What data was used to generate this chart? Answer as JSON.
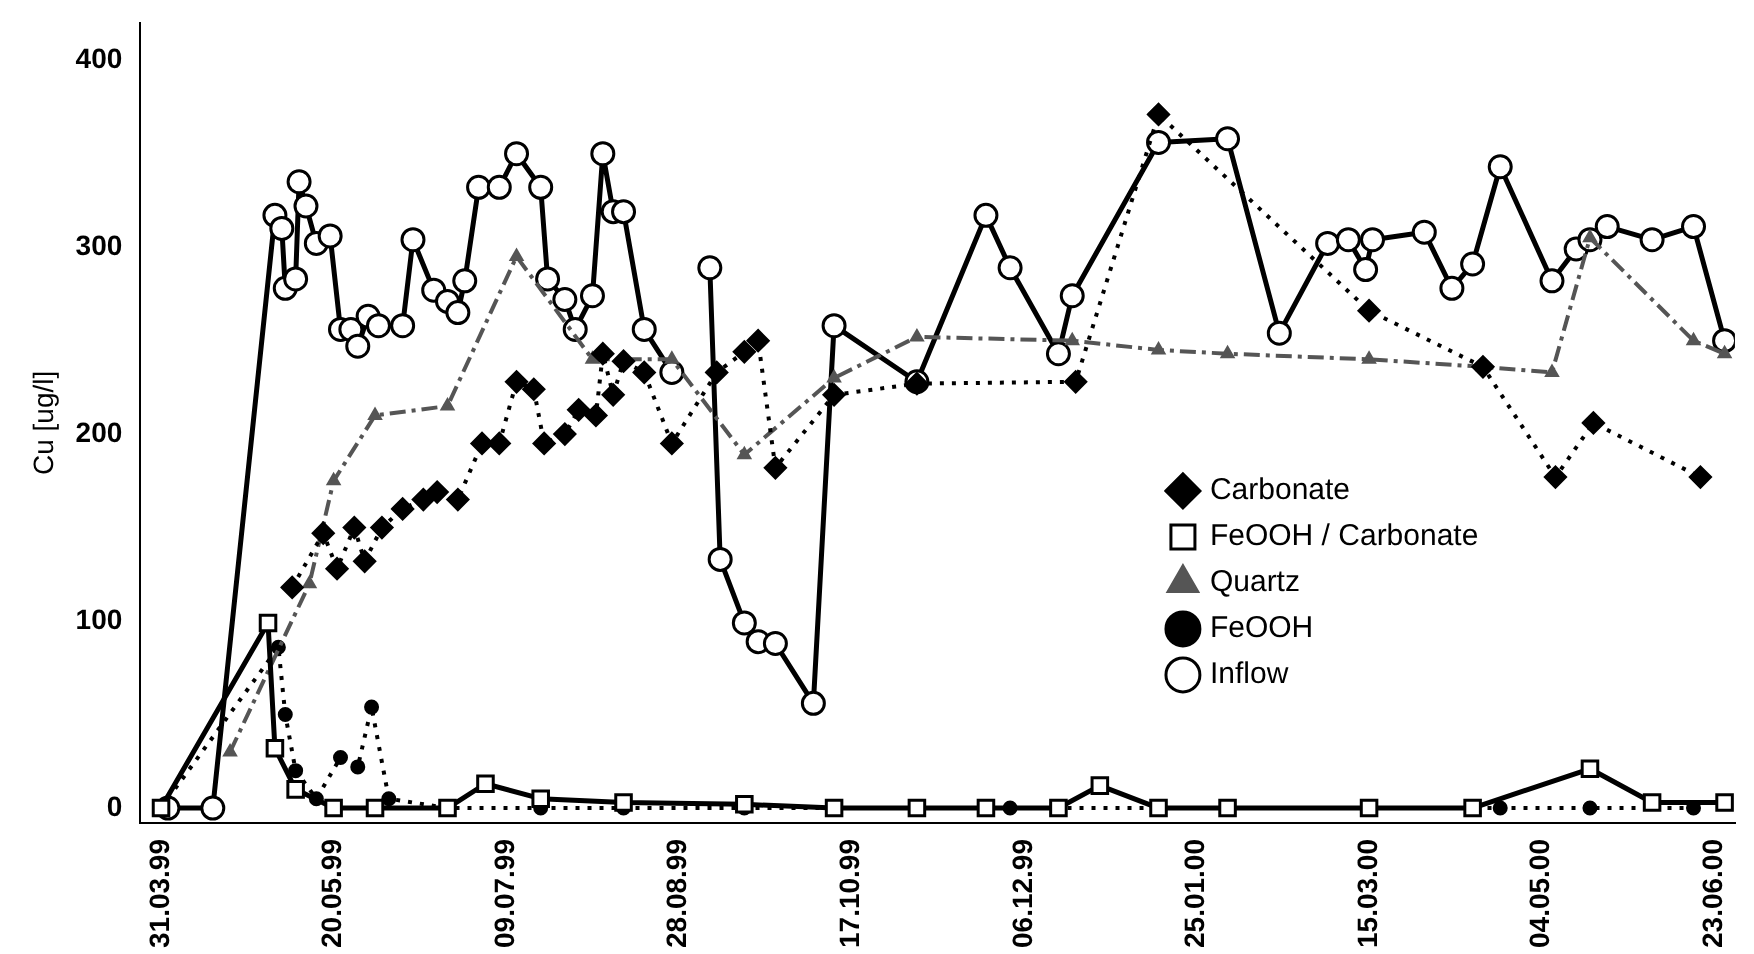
{
  "chart_data": {
    "type": "line",
    "ylabel": "Cu [ug/l]",
    "xlim": [
      "1999-03-25",
      "2000-06-29"
    ],
    "ylim": [
      -8,
      420
    ],
    "yticks": [
      0,
      100,
      200,
      300,
      400
    ],
    "xticks": [
      {
        "value": "1999-03-31",
        "label": "31.03.99"
      },
      {
        "value": "1999-05-20",
        "label": "20.05.99"
      },
      {
        "value": "1999-07-09",
        "label": "09.07.99"
      },
      {
        "value": "1999-08-28",
        "label": "28.08.99"
      },
      {
        "value": "1999-10-17",
        "label": "17.10.99"
      },
      {
        "value": "1999-12-06",
        "label": "06.12.99"
      },
      {
        "value": "2000-01-25",
        "label": "25.01.00"
      },
      {
        "value": "2000-03-15",
        "label": "15.03.00"
      },
      {
        "value": "2000-05-04",
        "label": "04.05.00"
      },
      {
        "value": "2000-06-23",
        "label": "23.06.00"
      }
    ],
    "grid": false,
    "legend": "right",
    "series": [
      {
        "name": "Carbonate",
        "color": "#000000",
        "marker": "diamond",
        "line_style": "dotted",
        "x": [
          "1999-05-08",
          "1999-05-17",
          "1999-05-21",
          "1999-05-26",
          "1999-05-29",
          "1999-06-03",
          "1999-06-09",
          "1999-06-15",
          "1999-06-19",
          "1999-06-25",
          "1999-07-02",
          "1999-07-07",
          "1999-07-12",
          "1999-07-17",
          "1999-07-20",
          "1999-07-26",
          "1999-07-30",
          "1999-08-04",
          "1999-08-06",
          "1999-08-09",
          "1999-08-12",
          "1999-08-18",
          "1999-08-26",
          "1999-09-08",
          "1999-09-16",
          "1999-09-20",
          "1999-09-25",
          "1999-10-12",
          "1999-11-05",
          "1999-12-21",
          "2000-01-14",
          "2000-03-15",
          "2000-04-17",
          "2000-05-08",
          "2000-05-19",
          "2000-06-19"
        ],
        "values": [
          118,
          147,
          128,
          150,
          132,
          150,
          160,
          165,
          169,
          165,
          195,
          195,
          228,
          224,
          195,
          200,
          213,
          210,
          243,
          221,
          239,
          233,
          195,
          233,
          244,
          250,
          182,
          221,
          227,
          228,
          371,
          266,
          236,
          177,
          206,
          177
        ]
      },
      {
        "name": "FeOOH / Carbonate",
        "color": "#000000",
        "marker": "square",
        "line_style": "solid",
        "x": [
          "1999-03-31",
          "1999-05-01",
          "1999-05-03",
          "1999-05-09",
          "1999-05-20",
          "1999-06-01",
          "1999-06-22",
          "1999-07-03",
          "1999-07-19",
          "1999-08-12",
          "1999-09-16",
          "1999-10-12",
          "1999-11-05",
          "1999-11-25",
          "1999-12-16",
          "1999-12-28",
          "2000-01-14",
          "2000-02-03",
          "2000-03-15",
          "2000-04-14",
          "2000-05-18",
          "2000-06-05",
          "2000-06-26"
        ],
        "values": [
          0,
          99,
          32,
          10,
          0,
          0,
          0,
          13,
          5,
          3,
          2,
          0,
          0,
          0,
          0,
          12,
          0,
          0,
          0,
          0,
          21,
          3,
          3
        ]
      },
      {
        "name": "Quartz",
        "color": "#555555",
        "marker": "triangle",
        "line_style": "dashed",
        "x": [
          "1999-04-20",
          "1999-05-13",
          "1999-05-20",
          "1999-06-01",
          "1999-06-22",
          "1999-07-12",
          "1999-08-03",
          "1999-08-26",
          "1999-09-16",
          "1999-10-12",
          "1999-11-05",
          "1999-12-20",
          "2000-01-14",
          "2000-02-03",
          "2000-03-15",
          "2000-04-17",
          "2000-05-07",
          "2000-05-18",
          "2000-06-17",
          "2000-06-26"
        ],
        "values": [
          30,
          120,
          175,
          210,
          215,
          295,
          240,
          240,
          189,
          230,
          252,
          250,
          245,
          243,
          240,
          236,
          233,
          305,
          250,
          243
        ]
      },
      {
        "name": "FeOOH",
        "color": "#000000",
        "marker": "circle",
        "line_style": "dotted",
        "x": [
          "1999-03-31",
          "1999-05-04",
          "1999-05-06",
          "1999-05-09",
          "1999-05-15",
          "1999-05-22",
          "1999-05-27",
          "1999-05-31",
          "1999-06-05",
          "1999-06-22",
          "1999-07-19",
          "1999-08-12",
          "1999-09-16",
          "1999-10-12",
          "1999-12-02",
          "2000-01-14",
          "2000-03-15",
          "2000-04-22",
          "2000-05-18",
          "2000-06-17"
        ],
        "values": [
          0,
          86,
          50,
          20,
          5,
          27,
          22,
          54,
          5,
          0,
          0,
          0,
          0,
          0,
          0,
          0,
          0,
          0,
          0,
          0
        ]
      },
      {
        "name": "Inflow",
        "color": "#000000",
        "marker": "circle",
        "line_style": "solid",
        "x": [
          "1999-04-02",
          "1999-04-15",
          "1999-05-03",
          "1999-05-05",
          "1999-05-06",
          "1999-05-09",
          "1999-05-10",
          "1999-05-12",
          "1999-05-15",
          "1999-05-19",
          "1999-05-22",
          "1999-05-25",
          "1999-05-27",
          "1999-05-30",
          "1999-06-02",
          "1999-06-09",
          "1999-06-12",
          "1999-06-18",
          "1999-06-22",
          "1999-06-25",
          "1999-06-27",
          "1999-07-01",
          "1999-07-07",
          "1999-07-12",
          "1999-07-19",
          "1999-07-21",
          "1999-07-26",
          "1999-07-29",
          "1999-08-03",
          "1999-08-06",
          "1999-08-09",
          "1999-08-12",
          "1999-08-18",
          "1999-08-26",
          "1999-08-31",
          "1999-09-06",
          "1999-09-09",
          "1999-09-16",
          "1999-09-20",
          "1999-09-25",
          "1999-10-06",
          "1999-10-12",
          "1999-11-05",
          "1999-11-25",
          "1999-12-02",
          "1999-12-16",
          "1999-12-20",
          "2000-01-14",
          "2000-02-03",
          "2000-02-18",
          "2000-03-03",
          "2000-03-09",
          "2000-03-14",
          "2000-03-16",
          "2000-03-31",
          "2000-04-08",
          "2000-04-14",
          "2000-04-22",
          "2000-05-07",
          "2000-05-14",
          "2000-05-18",
          "2000-05-23",
          "2000-06-05",
          "2000-06-17",
          "2000-06-26"
        ],
        "values": [
          0,
          0,
          317,
          310,
          278,
          283,
          335,
          322,
          302,
          306,
          256,
          256,
          247,
          263,
          258,
          258,
          304,
          277,
          271,
          265,
          282,
          332,
          332,
          350,
          332,
          283,
          272,
          256,
          274,
          350,
          319,
          319,
          256,
          233,
          null,
          289,
          133,
          99,
          89,
          88,
          56,
          258,
          228,
          317,
          289,
          243,
          274,
          356,
          358,
          254,
          302,
          304,
          288,
          304,
          308,
          278,
          291,
          343,
          282,
          299,
          304,
          311,
          304,
          311,
          250
        ]
      }
    ]
  }
}
